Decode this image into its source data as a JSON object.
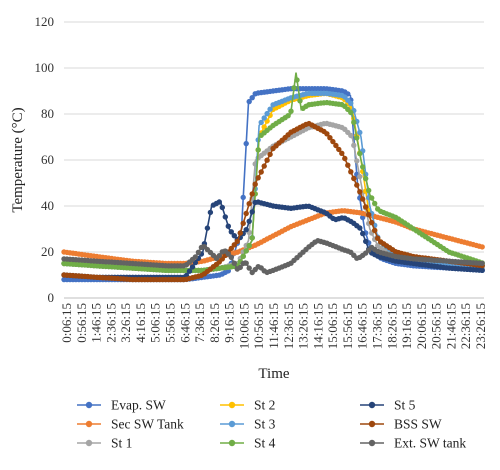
{
  "chart_data": {
    "type": "line",
    "title": "",
    "xlabel": "Time",
    "ylabel": "Temperature (°C)",
    "ylim": [
      0,
      120
    ],
    "y_ticks": [
      0,
      20,
      40,
      60,
      80,
      100,
      120
    ],
    "x_ticks": [
      "0:06:15",
      "0:56:15",
      "1:46:15",
      "2:36:15",
      "3:26:15",
      "4:16:15",
      "5:06:15",
      "5:56:15",
      "6:46:15",
      "7:36:15",
      "8:26:15",
      "9:16:15",
      "10:06:15",
      "10:56:15",
      "11:46:15",
      "12:36:15",
      "13:26:15",
      "14:16:15",
      "15:06:15",
      "15:56:15",
      "16:46:15",
      "17:36:15",
      "18:26:15",
      "19:16:15",
      "20:06:15",
      "20:56:15",
      "21:46:15",
      "22:36:15",
      "23:26:15"
    ],
    "x_unit": "hours",
    "xlim": [
      0.1,
      24.0
    ],
    "grid": "horizontal",
    "legend_position": "bottom",
    "series": [
      {
        "name": "Evap. SW",
        "color": "#4472C4",
        "x": [
          0.1,
          2,
          4,
          6,
          7,
          8,
          9,
          9.5,
          10.2,
          10.6,
          11,
          12,
          13,
          14,
          15,
          16,
          16.4,
          16.8,
          17.2,
          17.6,
          18.2,
          19,
          20,
          22,
          24
        ],
        "y": [
          8,
          8,
          8,
          8,
          8,
          9,
          10,
          12,
          30,
          85,
          89,
          90,
          91,
          91,
          91,
          90,
          88,
          50,
          30,
          20,
          17,
          15,
          14,
          13,
          12
        ]
      },
      {
        "name": "Sec SW Tank",
        "color": "#ED7D31",
        "x": [
          0.1,
          2,
          4,
          6,
          7,
          8,
          9,
          10,
          11,
          12,
          13,
          14,
          15,
          16,
          17,
          18,
          19,
          20,
          22,
          24
        ],
        "y": [
          20,
          18,
          16,
          15,
          15,
          16,
          18,
          20,
          23,
          27,
          31,
          34,
          37,
          38,
          37,
          35,
          33,
          30,
          26,
          22
        ]
      },
      {
        "name": "St 1",
        "color": "#A5A5A5",
        "x": [
          0.1,
          2,
          4,
          6,
          7,
          8,
          9,
          10,
          10.6,
          11,
          12,
          13,
          14,
          15,
          16,
          16.5,
          17,
          17.5,
          18,
          19,
          20,
          22,
          24
        ],
        "y": [
          15,
          14,
          13,
          12,
          12,
          12,
          13,
          15,
          25,
          60,
          66,
          70,
          74,
          76,
          74,
          70,
          50,
          30,
          22,
          18,
          16,
          14,
          13
        ]
      },
      {
        "name": "St 2",
        "color": "#FFC000",
        "x": [
          0.1,
          2,
          4,
          6,
          7,
          8,
          9,
          10,
          10.8,
          11.2,
          12,
          13,
          14,
          15,
          16,
          16.5,
          17,
          17.5,
          18,
          19,
          20,
          22,
          24
        ],
        "y": [
          15,
          14,
          13,
          12,
          12,
          12,
          13,
          14,
          25,
          70,
          82,
          86,
          88,
          89,
          87,
          82,
          60,
          35,
          25,
          19,
          17,
          15,
          14
        ]
      },
      {
        "name": "St 3",
        "color": "#5B9BD5",
        "x": [
          0.1,
          2,
          4,
          6,
          7,
          8,
          9,
          10,
          10.8,
          11.2,
          12,
          13,
          14,
          15,
          16,
          16.5,
          17,
          17.5,
          18,
          19,
          20,
          22,
          24
        ],
        "y": [
          15,
          14,
          13,
          12,
          12,
          12,
          13,
          14,
          25,
          75,
          84,
          87,
          89,
          89,
          88,
          84,
          70,
          40,
          25,
          19,
          17,
          15,
          14
        ]
      },
      {
        "name": "St 4",
        "color": "#70AD47",
        "x": [
          0.1,
          2,
          4,
          6,
          7,
          8,
          9,
          10,
          10.8,
          11.2,
          12,
          13,
          13.3,
          13.6,
          14,
          15,
          16,
          16.5,
          17,
          17.5,
          18,
          19,
          20,
          21,
          22,
          24
        ],
        "y": [
          15,
          14,
          13,
          12,
          12,
          12,
          13,
          14,
          25,
          70,
          75,
          80,
          98,
          82,
          84,
          85,
          84,
          80,
          60,
          45,
          38,
          35,
          30,
          25,
          20,
          15
        ]
      },
      {
        "name": "St 5",
        "color": "#264478",
        "x": [
          0.1,
          2,
          4,
          6,
          7,
          8,
          8.5,
          9,
          9.5,
          10,
          10.5,
          11,
          12,
          13,
          14,
          15,
          15.5,
          16,
          16.5,
          17,
          17.5,
          18,
          19,
          20,
          22,
          24
        ],
        "y": [
          10,
          9,
          9,
          9,
          9,
          20,
          40,
          42,
          30,
          25,
          30,
          42,
          40,
          39,
          40,
          37,
          34,
          35,
          33,
          30,
          20,
          18,
          16,
          15,
          13,
          12
        ]
      },
      {
        "name": "BSS SW",
        "color": "#9E480E",
        "x": [
          0.1,
          2,
          4,
          6,
          7,
          8,
          9,
          10,
          11,
          12,
          13,
          14,
          15,
          16,
          17,
          18,
          19,
          20,
          22,
          24
        ],
        "y": [
          10,
          9,
          8,
          8,
          8,
          10,
          16,
          25,
          50,
          65,
          72,
          76,
          72,
          62,
          45,
          25,
          20,
          18,
          16,
          14
        ]
      },
      {
        "name": "Ext. SW tank",
        "color": "#636363",
        "x": [
          0.1,
          2,
          4,
          6,
          7,
          7.6,
          8,
          8.4,
          8.8,
          9.2,
          9.6,
          10,
          10.4,
          10.8,
          11.2,
          11.6,
          12,
          13,
          14,
          14.5,
          15,
          16,
          16.4,
          16.8,
          17.2,
          17.6,
          18,
          19,
          20,
          22,
          24
        ],
        "y": [
          17,
          16,
          15,
          14,
          14,
          18,
          23,
          20,
          17,
          21,
          18,
          12,
          16,
          11,
          14,
          11,
          12,
          15,
          22,
          25,
          24,
          21,
          20,
          17,
          19,
          22,
          20,
          18,
          17,
          16,
          15
        ]
      }
    ]
  }
}
